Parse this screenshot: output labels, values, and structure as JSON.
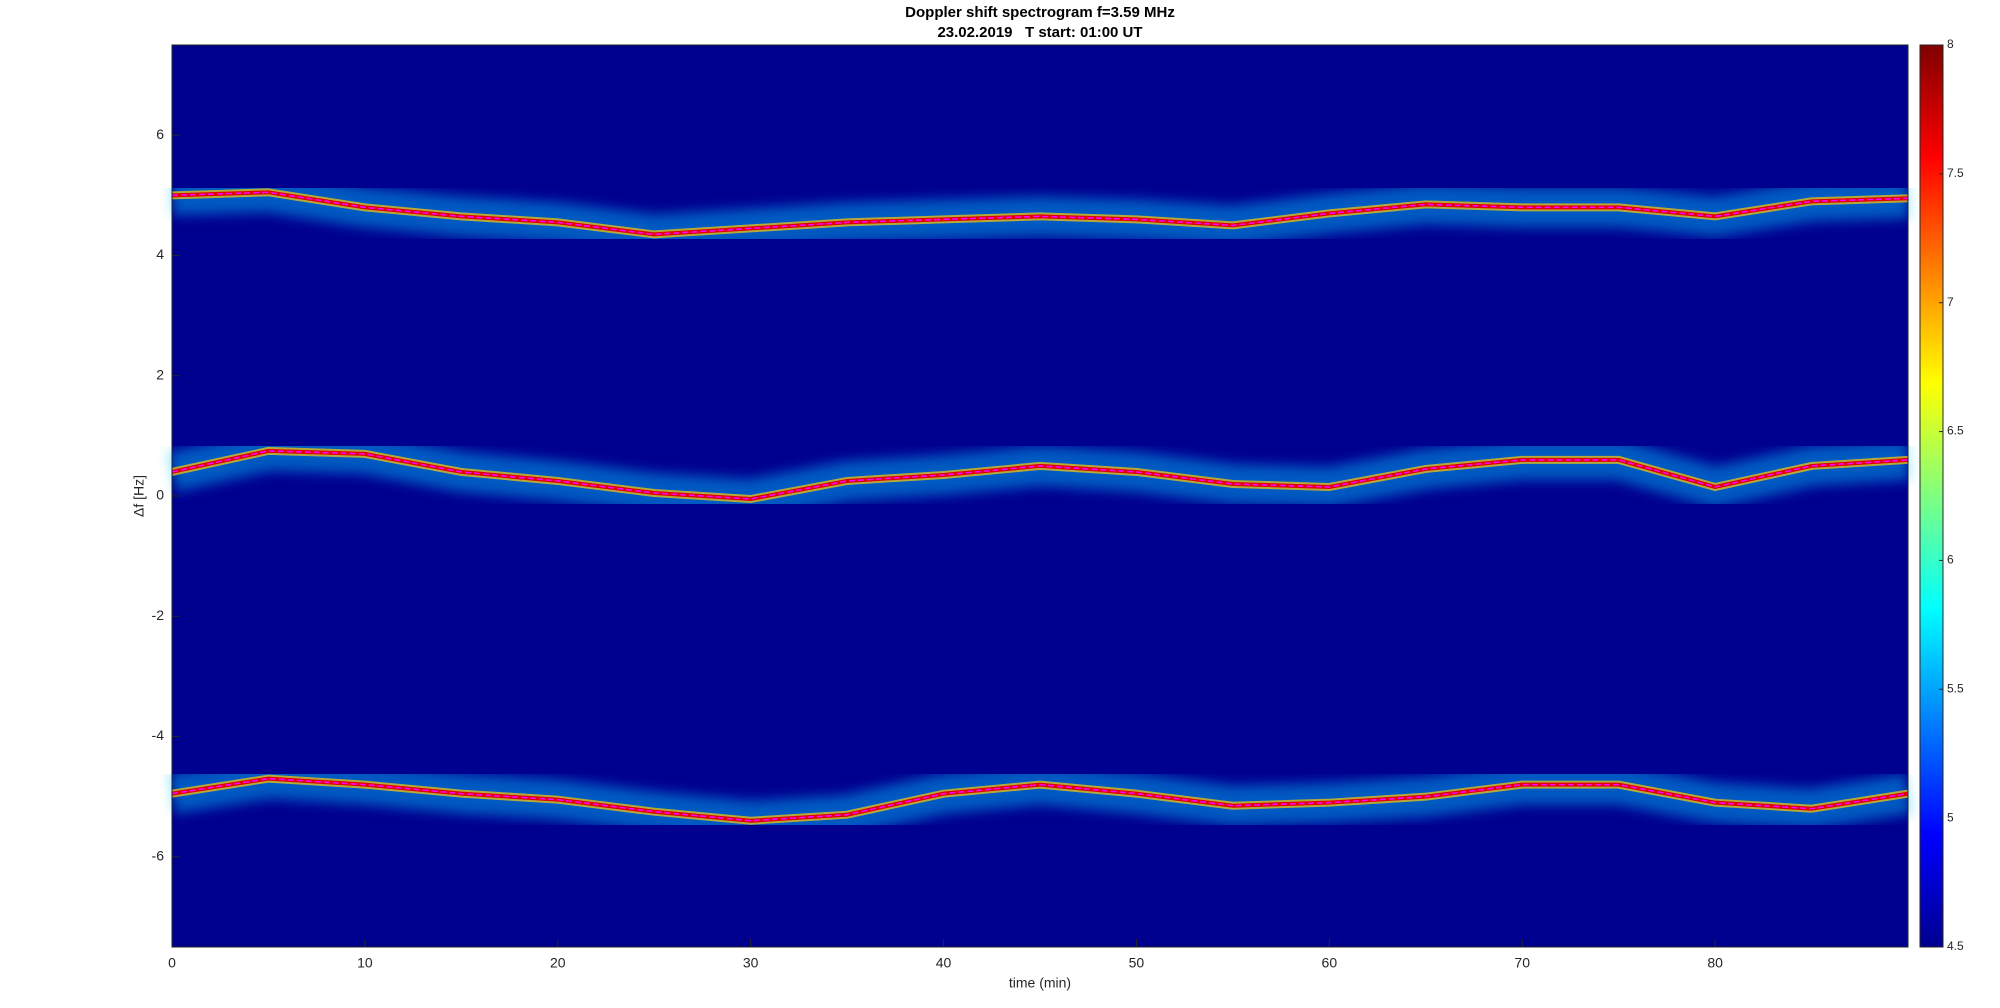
{
  "chart_data": {
    "type": "line",
    "title": "Doppler shift spectrogram f=3.59 MHz",
    "subtitle": "23.02.2019   T start: 01:00 UT",
    "x_label": "time (min)",
    "y_label": "Δf [Hz]",
    "x": [
      0,
      5,
      10,
      15,
      20,
      25,
      30,
      35,
      40,
      45,
      50,
      55,
      60,
      65,
      70,
      75,
      80,
      85,
      90
    ],
    "series": [
      {
        "color": "#ff00ff",
        "values": [
          5.0,
          5.05,
          4.8,
          4.65,
          4.55,
          4.35,
          4.45,
          4.55,
          4.6,
          4.65,
          4.6,
          4.5,
          4.7,
          4.85,
          4.8,
          4.8,
          4.65,
          4.9,
          4.95
        ]
      },
      {
        "color": "#ff00ff",
        "values": [
          0.4,
          0.75,
          0.7,
          0.4,
          0.25,
          0.05,
          -0.05,
          0.25,
          0.35,
          0.5,
          0.4,
          0.2,
          0.15,
          0.45,
          0.6,
          0.6,
          0.15,
          0.5,
          0.6
        ]
      },
      {
        "color": "#ff00ff",
        "values": [
          -4.95,
          -4.7,
          -4.8,
          -4.95,
          -5.05,
          -5.25,
          -5.4,
          -5.3,
          -4.95,
          -4.8,
          -4.95,
          -5.15,
          -5.1,
          -5.0,
          -4.8,
          -4.8,
          -5.1,
          -5.2,
          -4.95
        ]
      }
    ],
    "xlim": [
      0,
      90
    ],
    "xticks": [
      0,
      10,
      20,
      30,
      40,
      50,
      60,
      70,
      80
    ],
    "ylim": [
      -7.5,
      7.5
    ],
    "yticks": [
      -6,
      -4,
      -2,
      0,
      2,
      4,
      6
    ],
    "background_color": "#00008f",
    "colorbar": {
      "lim": [
        4.5,
        8
      ],
      "ticks": [
        4.5,
        5,
        5.5,
        6,
        6.5,
        7,
        7.5,
        8
      ],
      "colormap": "jet"
    }
  }
}
